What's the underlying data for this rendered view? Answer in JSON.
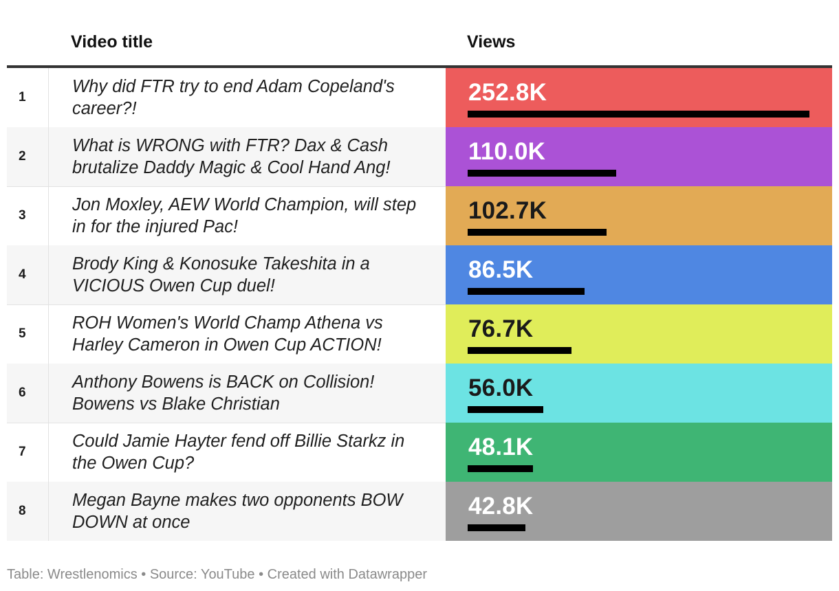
{
  "header": {
    "col_title": "Video title",
    "col_views": "Views"
  },
  "footer": {
    "text": "Table: Wrestlenomics • Source: YouTube • Created with Datawrapper"
  },
  "chart_data": {
    "type": "table",
    "columns": [
      "",
      "Video title",
      "Views"
    ],
    "max_value": 252.8,
    "rows": [
      {
        "rank": "1",
        "title": "Why did FTR try to end Adam Copeland's career?!",
        "views": "252.8K",
        "value": 252.8,
        "color": "#ed5c5c",
        "text_color": "#ffffff"
      },
      {
        "rank": "2",
        "title": "What is WRONG with FTR? Dax & Cash brutalize Daddy Magic & Cool Hand Ang!",
        "views": "110.0K",
        "value": 110.0,
        "color": "#ab52d6",
        "text_color": "#ffffff"
      },
      {
        "rank": "3",
        "title": "Jon Moxley, AEW World Champion, will step in for the injured Pac!",
        "views": "102.7K",
        "value": 102.7,
        "color": "#e2aa55",
        "text_color": "#1a1a1a"
      },
      {
        "rank": "4",
        "title": "Brody King & Konosuke Takeshita in a VICIOUS Owen Cup duel!",
        "views": "86.5K",
        "value": 86.5,
        "color": "#4f87e2",
        "text_color": "#ffffff"
      },
      {
        "rank": "5",
        "title": "ROH Women's World Champ Athena vs Harley Cameron in Owen Cup ACTION!",
        "views": "76.7K",
        "value": 76.7,
        "color": "#e0ed5a",
        "text_color": "#1a1a1a"
      },
      {
        "rank": "6",
        "title": "Anthony Bowens is BACK on Collision! Bowens vs Blake Christian",
        "views": "56.0K",
        "value": 56.0,
        "color": "#6ce3e3",
        "text_color": "#1a1a1a"
      },
      {
        "rank": "7",
        "title": "Could Jamie Hayter fend off Billie Starkz in the Owen Cup?",
        "views": "48.1K",
        "value": 48.1,
        "color": "#3fb574",
        "text_color": "#ffffff"
      },
      {
        "rank": "8",
        "title": "Megan Bayne makes two opponents BOW DOWN at once",
        "views": "42.8K",
        "value": 42.8,
        "color": "#9e9e9e",
        "text_color": "#ffffff"
      }
    ]
  }
}
